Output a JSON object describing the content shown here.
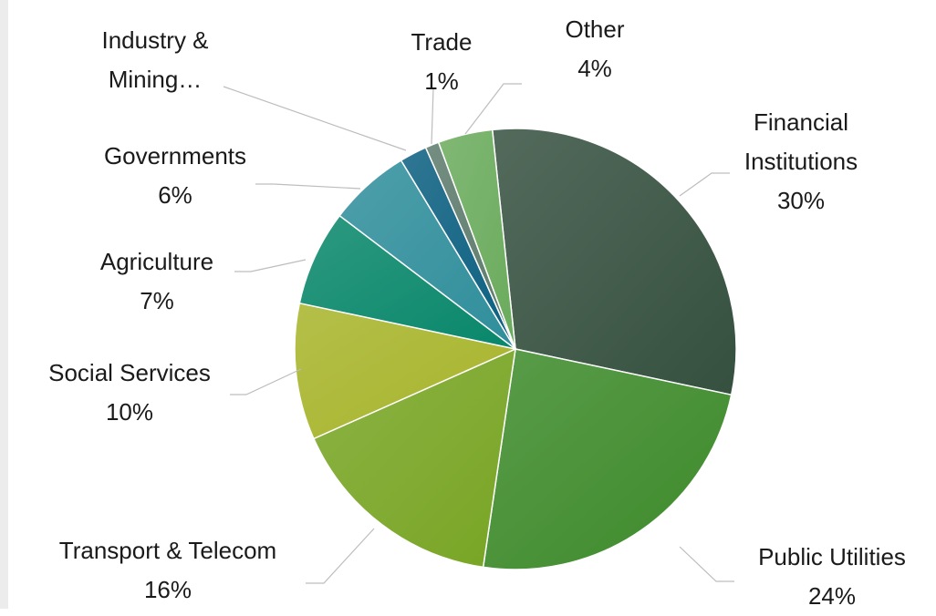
{
  "chart_data": {
    "type": "pie",
    "categories": [
      "Financial Institutions",
      "Public Utilities",
      "Transport & Telecom",
      "Social Services",
      "Agriculture",
      "Governments",
      "Industry & Mining…",
      "Trade",
      "Other"
    ],
    "values": [
      30,
      24,
      16,
      10,
      7,
      6,
      2,
      1,
      4
    ],
    "value_labels": [
      "30%",
      "24%",
      "16%",
      "10%",
      "7%",
      "6%",
      null,
      "1%",
      "4%"
    ],
    "colors": [
      "#35503f",
      "#3d8a2a",
      "#78a524",
      "#a7b42a",
      "#08876a",
      "#2f8e9b",
      "#0b5f80",
      "#5c7a6c",
      "#6aab5c"
    ]
  }
}
